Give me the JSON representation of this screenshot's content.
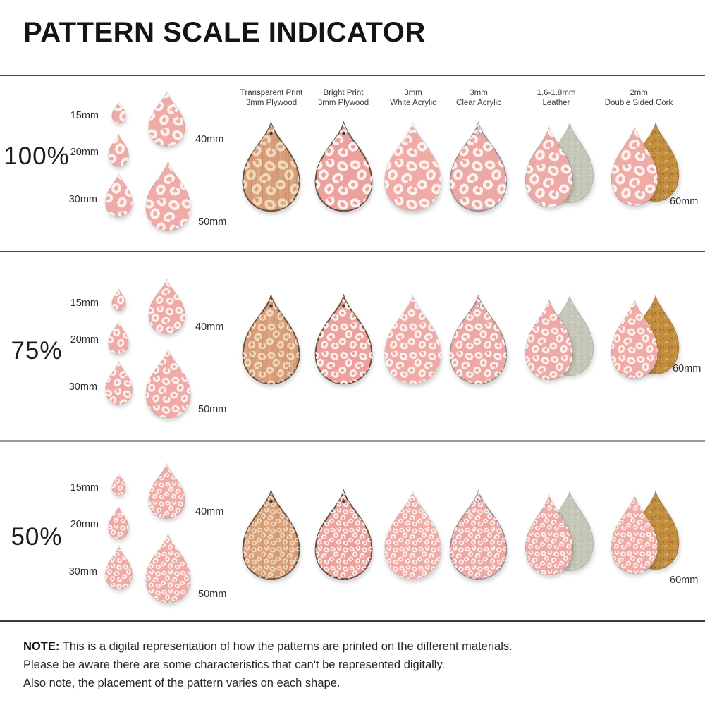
{
  "title": "PATTERN SCALE INDICATOR",
  "rows": [
    {
      "label": "100%",
      "pattern_scale": 1
    },
    {
      "label": "75%",
      "pattern_scale": 0.75
    },
    {
      "label": "50%",
      "pattern_scale": 0.5
    }
  ],
  "cluster_sizes": [
    "15mm",
    "20mm",
    "30mm",
    "40mm",
    "50mm"
  ],
  "material_size_label": "60mm",
  "columns": [
    {
      "name": "transparent-plywood",
      "header": [
        "Transparent Print",
        "3mm Plywood"
      ]
    },
    {
      "name": "bright-plywood",
      "header": [
        "Bright Print",
        "3mm Plywood"
      ]
    },
    {
      "name": "white-acrylic",
      "header": [
        "3mm",
        "White Acrylic"
      ]
    },
    {
      "name": "clear-acrylic",
      "header": [
        "3mm",
        "Clear Acrylic"
      ]
    },
    {
      "name": "leather",
      "header": [
        "1.6-1.8mm",
        "Leather"
      ]
    },
    {
      "name": "cork",
      "header": [
        "2mm",
        "Double Sided Cork"
      ]
    }
  ],
  "note": {
    "label": "NOTE:",
    "lines": [
      "This is a digital representation of how the patterns are printed on the different materials.",
      "Please be aware there are some characteristics that can't be represented digitally.",
      "Also note, the placement of the pattern varies on each shape."
    ]
  },
  "colors": {
    "pattern_pink": "#f0aba7",
    "pattern_spot": "#fbf2ef",
    "bright_pink": "#eca19d",
    "acrylic_pink": "#f1aba7",
    "clear_pink": "#eda8a5",
    "leather_pink": "#eeaaa6",
    "wood_base": "#d89d79",
    "wood_spot": "rgba(246,228,200,0.85)",
    "suede": "#c6c7b8",
    "cork": "#c48e41",
    "plywood_edge": "#6a4f3a",
    "divider": "#4c4c4e"
  }
}
